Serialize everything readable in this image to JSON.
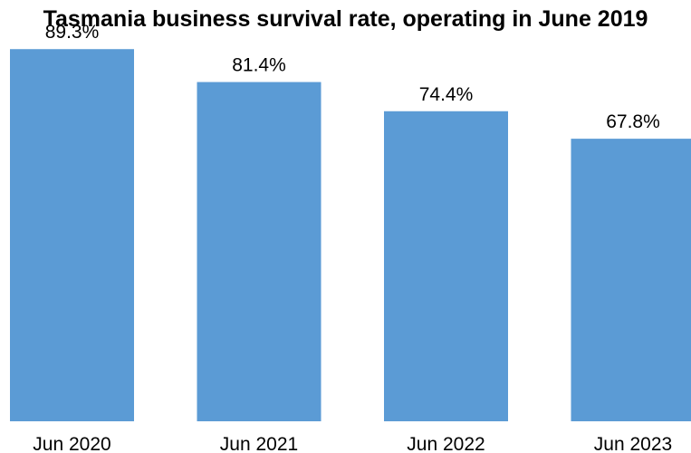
{
  "chart_data": {
    "type": "bar",
    "title": "Tasmania business survival rate, operating in June 2019",
    "categories": [
      "Jun 2020",
      "Jun 2021",
      "Jun 2022",
      "Jun 2023"
    ],
    "values": [
      89.3,
      81.4,
      74.4,
      67.8
    ],
    "value_labels": [
      "89.3%",
      "81.4%",
      "74.4%",
      "67.8%"
    ],
    "ylim": [
      0,
      100
    ],
    "xlabel": "",
    "ylabel": "",
    "grid": false,
    "legend": "none",
    "bar_color": "#5B9BD5"
  }
}
